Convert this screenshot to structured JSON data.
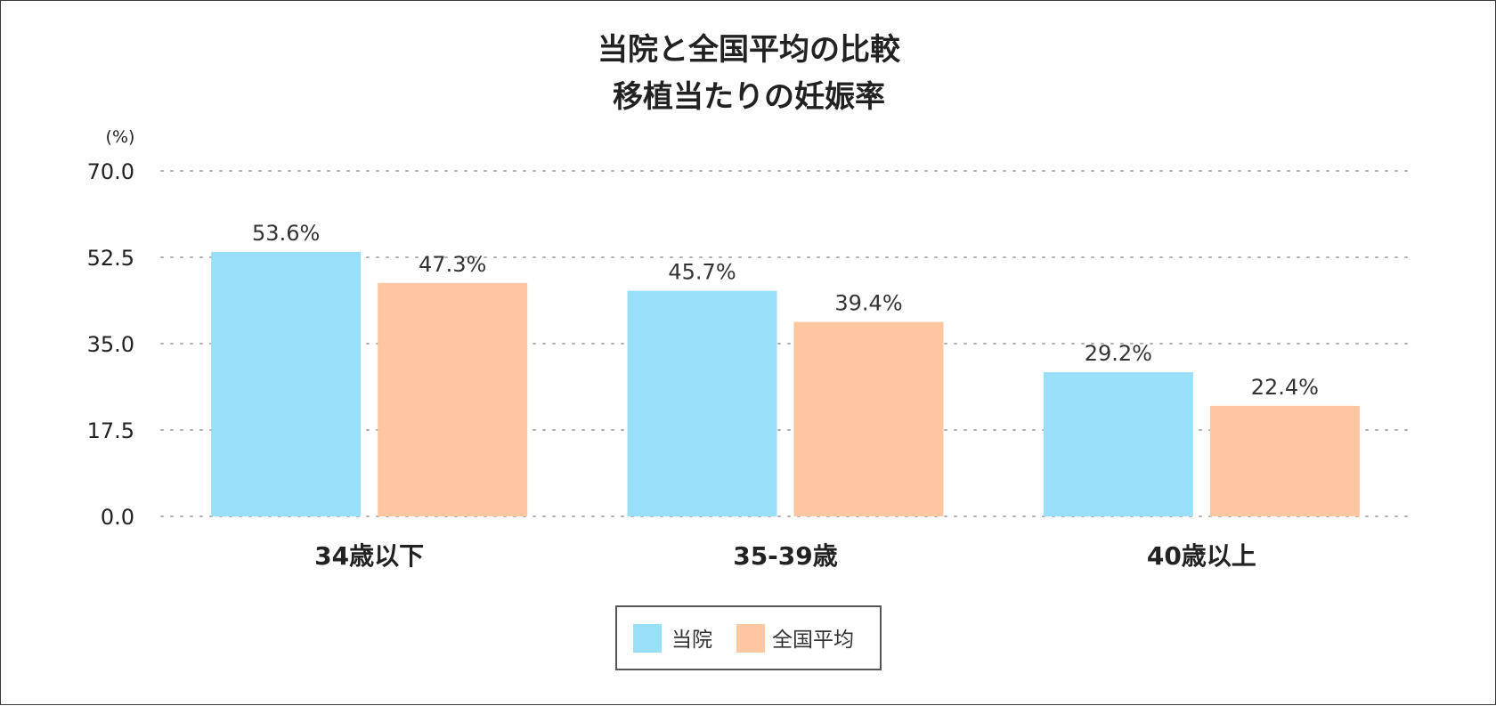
{
  "chart_data": {
    "type": "bar",
    "title": [
      "当院と全国平均の比較",
      "移植当たりの妊娠率"
    ],
    "ylabel": "(%)",
    "ylim": [
      0,
      70
    ],
    "yticks": [
      "70.0",
      "52.5",
      "35.0",
      "17.5",
      "0.0"
    ],
    "ytick_values": [
      70,
      52.5,
      35,
      17.5,
      0
    ],
    "grid": true,
    "legend_position": "bottom",
    "categories": [
      "34歳以下",
      "35-39歳",
      "40歳以上"
    ],
    "series": [
      {
        "name": "当院",
        "color": "#9ADFFA",
        "values": [
          53.6,
          45.7,
          29.2
        ],
        "labels": [
          "53.6%",
          "45.7%",
          "29.2%"
        ]
      },
      {
        "name": "全国平均",
        "color": "#FEC7A1",
        "values": [
          47.3,
          39.4,
          22.4
        ],
        "labels": [
          "47.3%",
          "39.4%",
          "22.4%"
        ]
      }
    ]
  }
}
